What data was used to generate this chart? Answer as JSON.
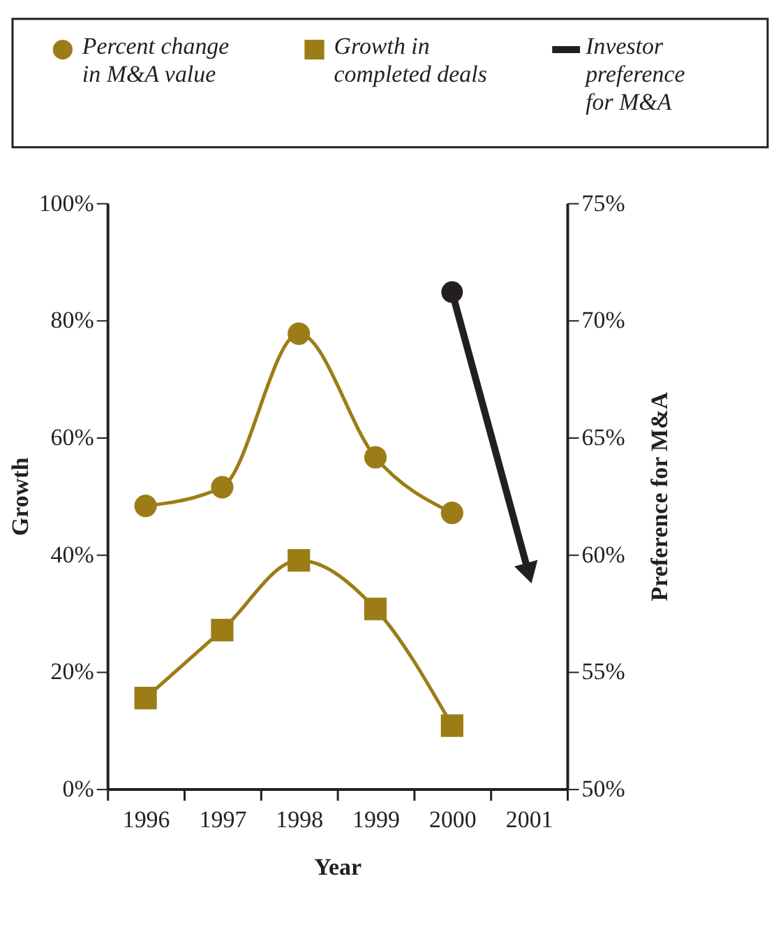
{
  "chart_data": {
    "type": "line",
    "xlabel": "Year",
    "ylabel": "Growth",
    "y2label": "Preference for M&A",
    "categories": [
      "1996",
      "1997",
      "1998",
      "1999",
      "2000",
      "2001"
    ],
    "series": [
      {
        "name": "Percent change\nin M&A value",
        "color": "#9c7c16",
        "marker": "circle",
        "values": [
          48.3,
          51.5,
          77.7,
          56.6,
          47.1,
          null
        ]
      },
      {
        "name": "Growth in\ncompleted deals",
        "color": "#9c7c16",
        "marker": "square",
        "values": [
          15.5,
          27.1,
          39.0,
          30.7,
          10.8,
          null
        ]
      },
      {
        "name": "Investor\npreference\nfor M&A",
        "color": "#231f20",
        "marker": "circle",
        "axis": "y2",
        "values": [
          null,
          null,
          null,
          null,
          71.2,
          59.2
        ]
      }
    ],
    "ylim": [
      0,
      100
    ],
    "yticks": [
      {
        "value": 0,
        "label": "0%"
      },
      {
        "value": 20,
        "label": "20%"
      },
      {
        "value": 40,
        "label": "40%"
      },
      {
        "value": 60,
        "label": "60%"
      },
      {
        "value": 80,
        "label": "80%"
      },
      {
        "value": 100,
        "label": "100%"
      }
    ],
    "y2lim": [
      50,
      75
    ],
    "y2ticks": [
      {
        "value": 50,
        "label": "50%"
      },
      {
        "value": 55,
        "label": "55%"
      },
      {
        "value": 60,
        "label": "60%"
      },
      {
        "value": 65,
        "label": "65%"
      },
      {
        "value": 70,
        "label": "70%"
      },
      {
        "value": 75,
        "label": "75%"
      }
    ],
    "legend": "top",
    "grid": false
  }
}
